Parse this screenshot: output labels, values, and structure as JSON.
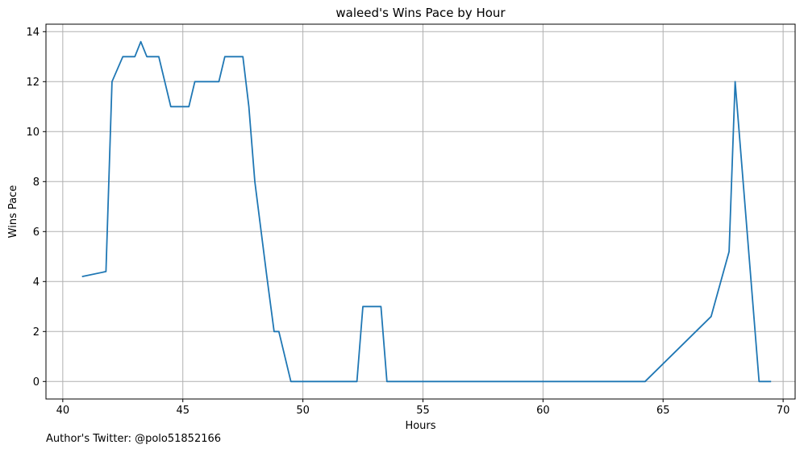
{
  "footer": {
    "credit": "Author's Twitter: @polo51852166"
  },
  "chart_data": {
    "type": "line",
    "title": "waleed's Wins Pace by Hour",
    "xlabel": "Hours",
    "ylabel": "Wins Pace",
    "xlim": [
      39.3,
      70.5
    ],
    "ylim": [
      -0.7,
      14.3
    ],
    "xticks": [
      40,
      45,
      50,
      55,
      60,
      65,
      70
    ],
    "yticks": [
      0,
      2,
      4,
      6,
      8,
      10,
      12,
      14
    ],
    "grid": true,
    "line_color": "#1f77b4",
    "series": [
      {
        "x": [
          40.8,
          41.8,
          42.05,
          42.5,
          43.0,
          43.25,
          43.5,
          44.0,
          44.5,
          45.25,
          45.5,
          46.5,
          46.75,
          47.5,
          47.75,
          48.0,
          48.5,
          48.8,
          49.0,
          49.5,
          50.0,
          52.0,
          52.25,
          52.5,
          53.25,
          53.5,
          54.0,
          64.25,
          67.0,
          67.75,
          68.0,
          69.0,
          69.5
        ],
        "y": [
          4.2,
          4.4,
          12.0,
          13.0,
          13.0,
          13.6,
          13.0,
          13.0,
          11.0,
          11.0,
          12.0,
          12.0,
          13.0,
          13.0,
          11.0,
          8.0,
          4.2,
          2.0,
          2.0,
          0.0,
          0.0,
          0.0,
          0.0,
          3.0,
          3.0,
          0.0,
          0.0,
          0.0,
          2.6,
          5.2,
          12.0,
          0.0,
          0.0
        ]
      }
    ]
  }
}
